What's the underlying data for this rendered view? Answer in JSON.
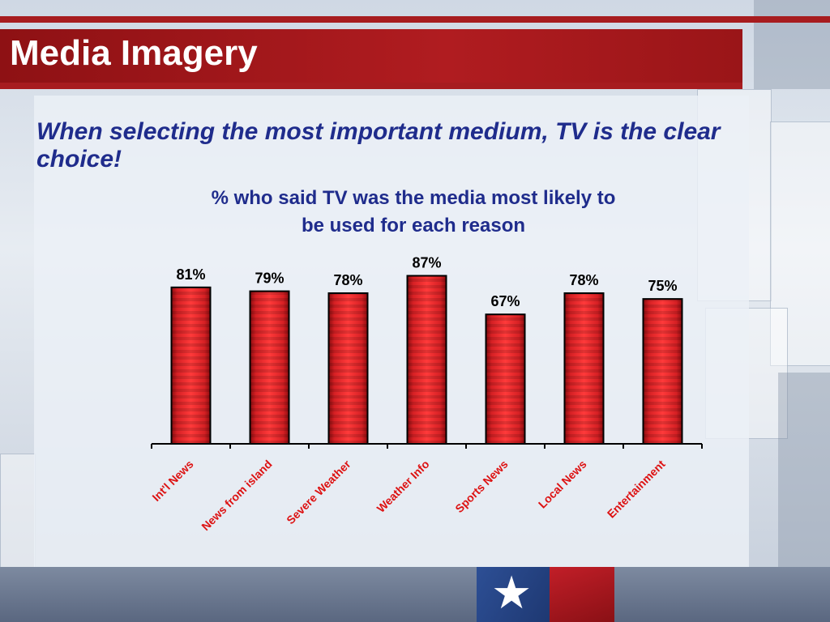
{
  "page": {
    "title": "Media Imagery",
    "subtitle": "When selecting the most important medium, TV is the clear choice!"
  },
  "chart_data": {
    "type": "bar",
    "title": "% who said TV was the media most likely to be used for each reason",
    "title_lines": [
      "% who said TV was the media most likely to",
      "be used for each reason"
    ],
    "categories": [
      "Int'l News",
      "News from island",
      "Severe Weather",
      "Weather Info",
      "Sports News",
      "Local News",
      "Entertainment"
    ],
    "values": [
      81,
      79,
      78,
      87,
      67,
      78,
      75
    ],
    "value_labels": [
      "81%",
      "79%",
      "78%",
      "87%",
      "67%",
      "78%",
      "75%"
    ],
    "xlabel": "",
    "ylabel": "",
    "ylim": [
      0,
      100
    ],
    "grid": false,
    "legend": "none",
    "bar_color": "#e0262b",
    "bar_edge_color": "#000000",
    "tick_label_color": "#dd1111"
  }
}
